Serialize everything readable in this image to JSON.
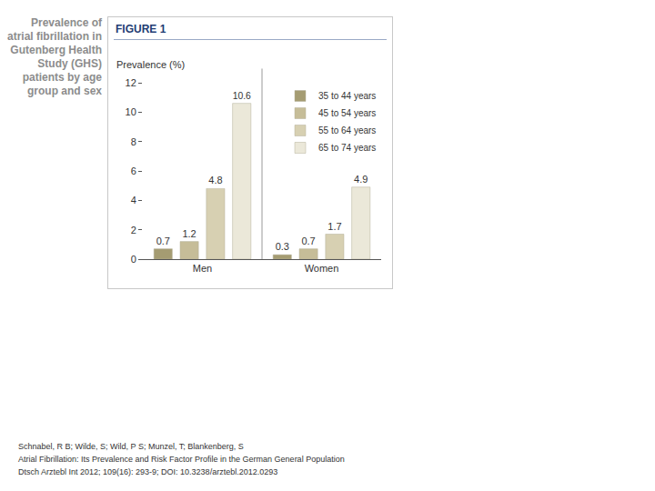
{
  "chart_data": {
    "type": "bar",
    "title": "Prevalence of atrial fibrillation in Gutenberg Health Study (GHS) patients by age group and sex",
    "y_label": "Prevalence (%)",
    "categories": [
      "Men",
      "Women"
    ],
    "series": [
      {
        "name": "35 to 44 years",
        "color": "#a59c72",
        "values": [
          0.7,
          0.3
        ]
      },
      {
        "name": "45 to 54 years",
        "color": "#c6bd98",
        "values": [
          1.2,
          0.7
        ]
      },
      {
        "name": "55 to 64 years",
        "color": "#d7d0b2",
        "values": [
          4.8,
          1.7
        ]
      },
      {
        "name": "65 to 74 years",
        "color": "#ebe8d9",
        "values": [
          10.6,
          4.9
        ]
      }
    ],
    "ylim": [
      0,
      12
    ],
    "yticks": [
      0,
      2,
      4,
      6,
      8,
      10,
      12
    ],
    "grid": false,
    "legend": "top right",
    "data_labels": true,
    "annotations": [
      "FIGURE 1",
      "Schnabel, R B; Wilde, S; Wild, P S; Munzel, T; Blankenberg, S",
      "Atrial Fibrillation: Its Prevalence and Risk Factor Profile in the German General Population",
      "Dtsch Arztebl Int 2012; 109(16): 293-9; DOI: 10.3238/arztebl.2012.0293"
    ]
  }
}
